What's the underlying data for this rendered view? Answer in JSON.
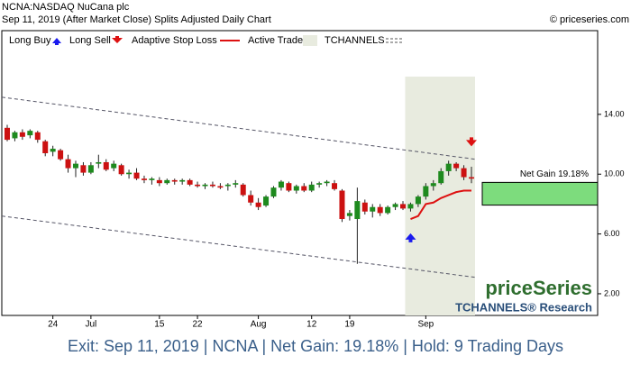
{
  "chart_data": {
    "type": "candlestick",
    "title": "NCNA:NASDAQ NuCana plc",
    "subtitle": "Sep 11, 2019 (After Market Close)  Splits Adjusted Daily Chart",
    "source": "© priceseries.com",
    "legend": [
      "Long Buy",
      "Long Sell",
      "Adaptive Stop Loss",
      "Active Trade",
      "TCHANNELS"
    ],
    "categories": [
      null,
      null,
      null,
      null,
      null,
      null,
      "24",
      null,
      null,
      null,
      null,
      "Jul",
      null,
      null,
      null,
      null,
      null,
      null,
      null,
      null,
      "15",
      null,
      null,
      null,
      null,
      "22",
      null,
      null,
      null,
      null,
      null,
      null,
      null,
      "Aug",
      null,
      null,
      null,
      null,
      null,
      null,
      "12",
      null,
      null,
      null,
      null,
      "19",
      null,
      null,
      null,
      null,
      null,
      null,
      null,
      null,
      null,
      "Sep",
      null,
      null,
      null,
      null,
      null,
      null
    ],
    "open": [
      13.1,
      12.4,
      12.8,
      12.6,
      12.8,
      12.2,
      11.5,
      11.6,
      11.0,
      10.4,
      10.6,
      10.1,
      10.7,
      10.8,
      10.4,
      10.6,
      10.0,
      10.1,
      9.7,
      9.6,
      9.6,
      9.4,
      9.6,
      9.5,
      9.6,
      9.3,
      9.2,
      9.3,
      9.2,
      9.2,
      9.3,
      9.3,
      8.6,
      8.1,
      7.9,
      8.5,
      9.1,
      9.4,
      8.9,
      9.2,
      8.9,
      9.3,
      9.4,
      9.4,
      8.9,
      7.2,
      7.0,
      8.1,
      7.5,
      7.8,
      7.4,
      7.8,
      8.0,
      7.7,
      8.0,
      8.5,
      9.2,
      9.4,
      10.2,
      10.7,
      10.4,
      9.8
    ],
    "high": [
      13.3,
      12.9,
      13.0,
      13.0,
      12.9,
      12.3,
      11.9,
      11.7,
      11.3,
      10.9,
      10.8,
      10.8,
      11.3,
      11.0,
      10.9,
      10.7,
      10.3,
      10.4,
      9.9,
      9.8,
      9.8,
      9.7,
      9.7,
      9.7,
      9.7,
      9.5,
      9.4,
      9.5,
      9.4,
      9.4,
      9.6,
      9.4,
      8.9,
      8.4,
      8.6,
      9.2,
      9.6,
      9.5,
      9.3,
      9.4,
      9.5,
      9.5,
      9.6,
      9.6,
      9.0,
      7.6,
      9.1,
      8.3,
      8.0,
      8.0,
      7.9,
      8.1,
      8.2,
      8.1,
      8.6,
      9.4,
      9.6,
      10.4,
      10.9,
      10.8,
      10.6,
      10.5
    ],
    "low": [
      12.2,
      12.2,
      12.3,
      12.4,
      12.1,
      11.2,
      11.2,
      10.9,
      10.1,
      9.8,
      9.9,
      10.0,
      10.4,
      10.2,
      10.2,
      9.9,
      9.7,
      9.6,
      9.4,
      9.3,
      9.2,
      9.3,
      9.3,
      9.3,
      9.2,
      9.1,
      9.0,
      9.1,
      9.0,
      8.9,
      9.1,
      8.5,
      7.9,
      7.6,
      7.8,
      8.4,
      8.9,
      8.8,
      8.7,
      8.8,
      8.8,
      9.1,
      9.2,
      8.9,
      6.8,
      6.9,
      4.0,
      7.3,
      7.1,
      7.2,
      7.3,
      7.6,
      7.6,
      7.5,
      7.8,
      8.3,
      8.9,
      9.3,
      9.9,
      10.2,
      9.6,
      9.4
    ],
    "close": [
      12.3,
      12.8,
      12.5,
      12.9,
      12.3,
      11.4,
      11.7,
      11.0,
      10.4,
      10.7,
      10.1,
      10.6,
      10.8,
      10.3,
      10.7,
      10.0,
      10.1,
      9.7,
      9.6,
      9.7,
      9.4,
      9.6,
      9.5,
      9.6,
      9.3,
      9.2,
      9.3,
      9.2,
      9.1,
      9.3,
      9.4,
      8.6,
      8.1,
      7.8,
      8.5,
      9.1,
      9.5,
      8.9,
      9.2,
      8.9,
      9.3,
      9.4,
      9.5,
      9.0,
      7.0,
      7.4,
      8.2,
      7.5,
      7.8,
      7.4,
      7.8,
      8.0,
      7.7,
      8.0,
      8.5,
      9.2,
      9.4,
      10.2,
      10.7,
      10.4,
      9.8,
      9.7
    ],
    "stop_loss": [
      null,
      null,
      null,
      null,
      null,
      null,
      null,
      null,
      null,
      null,
      null,
      null,
      null,
      null,
      null,
      null,
      null,
      null,
      null,
      null,
      null,
      null,
      null,
      null,
      null,
      null,
      null,
      null,
      null,
      null,
      null,
      null,
      null,
      null,
      null,
      null,
      null,
      null,
      null,
      null,
      null,
      null,
      null,
      null,
      null,
      null,
      null,
      null,
      null,
      null,
      null,
      null,
      null,
      7.0,
      7.2,
      8.0,
      8.1,
      8.4,
      8.6,
      8.8,
      8.9,
      8.9
    ],
    "buy_signals": [
      null,
      null,
      null,
      null,
      null,
      null,
      null,
      null,
      null,
      null,
      null,
      null,
      null,
      null,
      null,
      null,
      null,
      null,
      null,
      null,
      null,
      null,
      null,
      null,
      null,
      null,
      null,
      null,
      null,
      null,
      null,
      null,
      null,
      null,
      null,
      null,
      null,
      null,
      null,
      null,
      null,
      null,
      null,
      null,
      null,
      null,
      null,
      null,
      null,
      null,
      null,
      null,
      null,
      5.8,
      null,
      null,
      null,
      null,
      null,
      null,
      null,
      null
    ],
    "sell_signals": [
      null,
      null,
      null,
      null,
      null,
      null,
      null,
      null,
      null,
      null,
      null,
      null,
      null,
      null,
      null,
      null,
      null,
      null,
      null,
      null,
      null,
      null,
      null,
      null,
      null,
      null,
      null,
      null,
      null,
      null,
      null,
      null,
      null,
      null,
      null,
      null,
      null,
      null,
      null,
      null,
      null,
      null,
      null,
      null,
      null,
      null,
      null,
      null,
      null,
      null,
      null,
      null,
      null,
      null,
      null,
      null,
      null,
      null,
      null,
      null,
      null,
      12.1
    ],
    "channel_upper": [
      15.15,
      11.0
    ],
    "channel_lower": [
      7.2,
      3.1
    ],
    "entry_price": 7.93,
    "exit_price": 9.45,
    "gain_label": "Net Gain 19.18%",
    "up_color": "#1e8a1e",
    "down_color": "#cc1111",
    "ylim": [
      0.55,
      19.6
    ],
    "yticks": [
      {
        "value": 2,
        "label": "2.00"
      },
      {
        "value": 6,
        "label": "6.00"
      },
      {
        "value": 10,
        "label": "10.00"
      },
      {
        "value": 14,
        "label": "14.00"
      }
    ],
    "watermark": "priceSeries",
    "research": "TCHANNELS® Research",
    "footer": "Exit: Sep 11, 2019 | NCNA | Net Gain: 19.18% | Hold: 9 Trading Days"
  }
}
